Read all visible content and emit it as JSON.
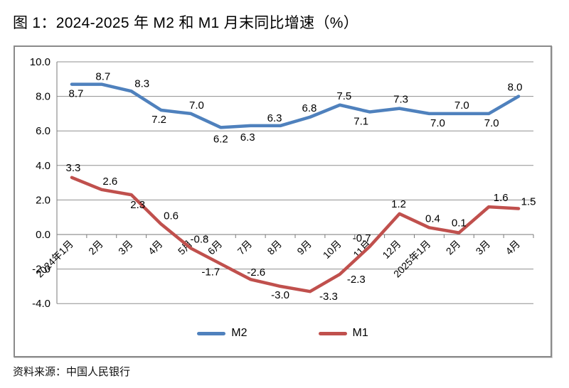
{
  "title": "图 1：2024-2025 年 M2 和 M1 月末同比增速（%）",
  "source_note": "资料来源：中国人民银行",
  "colors": {
    "m2_line": "#4F81BD",
    "m1_line": "#C0504D",
    "gridline": "#8f8f8f",
    "axis": "#7a7a7a",
    "frame_border": "#8a8a8a",
    "label_text": "#000000"
  },
  "chart_data": {
    "type": "line",
    "title": "2024-2025 年 M2 和 M1 月末同比增速（%）",
    "xlabel": "",
    "ylabel": "",
    "grid": true,
    "legend_position": "bottom-center",
    "categories": [
      "2024年1月",
      "2月",
      "3月",
      "4月",
      "5月",
      "6月",
      "7月",
      "8月",
      "9月",
      "10月",
      "11月",
      "12月",
      "2025年1月",
      "2月",
      "3月",
      "4月"
    ],
    "y_axis": {
      "min": -4.0,
      "max": 10.0,
      "step": 2.0,
      "tick_labels": [
        "10.0",
        "8.0",
        "6.0",
        "4.0",
        "2.0",
        "0.0",
        "-2.0",
        "-4.0"
      ]
    },
    "series": [
      {
        "name": "M2",
        "color": "#4F81BD",
        "values": [
          8.7,
          8.7,
          8.3,
          7.2,
          7.0,
          6.2,
          6.3,
          6.3,
          6.8,
          7.5,
          7.1,
          7.3,
          7.0,
          7.0,
          7.0,
          8.0
        ],
        "labels": [
          "8.7",
          "8.7",
          "8.3",
          "7.2",
          "7.0",
          "6.2",
          "6.3",
          "6.3",
          "6.8",
          "7.5",
          "7.1",
          "7.3",
          "7.0",
          "7.0",
          "7.0",
          "8.0"
        ],
        "label_offsets": [
          [
            6,
            13
          ],
          [
            2,
            -11
          ],
          [
            15,
            -11
          ],
          [
            -3,
            13
          ],
          [
            8,
            -12
          ],
          [
            0,
            16
          ],
          [
            -4,
            16
          ],
          [
            -8,
            -11
          ],
          [
            -1,
            -13
          ],
          [
            6,
            -13
          ],
          [
            -12,
            13
          ],
          [
            2,
            -13
          ],
          [
            12,
            13
          ],
          [
            4,
            -12
          ],
          [
            4,
            13
          ],
          [
            -5,
            -13
          ]
        ]
      },
      {
        "name": "M1",
        "color": "#C0504D",
        "values": [
          3.3,
          2.6,
          2.3,
          0.6,
          -0.8,
          -1.7,
          -2.6,
          -3.0,
          -3.3,
          -2.3,
          -0.7,
          1.2,
          0.4,
          0.1,
          1.6,
          1.5
        ],
        "labels": [
          "3.3",
          "2.6",
          "2.3",
          "0.6",
          "-0.8",
          "-1.7",
          "-2.6",
          "-3.0",
          "-3.3",
          "-2.3",
          "-0.7",
          "1.2",
          "0.4",
          "0.1",
          "1.6",
          "1.5"
        ],
        "label_offsets": [
          [
            2,
            -14
          ],
          [
            12,
            -12
          ],
          [
            9,
            14
          ],
          [
            14,
            -12
          ],
          [
            12,
            -13
          ],
          [
            -14,
            11
          ],
          [
            8,
            -10
          ],
          [
            0,
            12
          ],
          [
            26,
            7
          ],
          [
            23,
            7
          ],
          [
            -11,
            -12
          ],
          [
            -1,
            -14
          ],
          [
            5,
            -13
          ],
          [
            0,
            -14
          ],
          [
            17,
            -13
          ],
          [
            14,
            -10
          ]
        ]
      }
    ]
  }
}
